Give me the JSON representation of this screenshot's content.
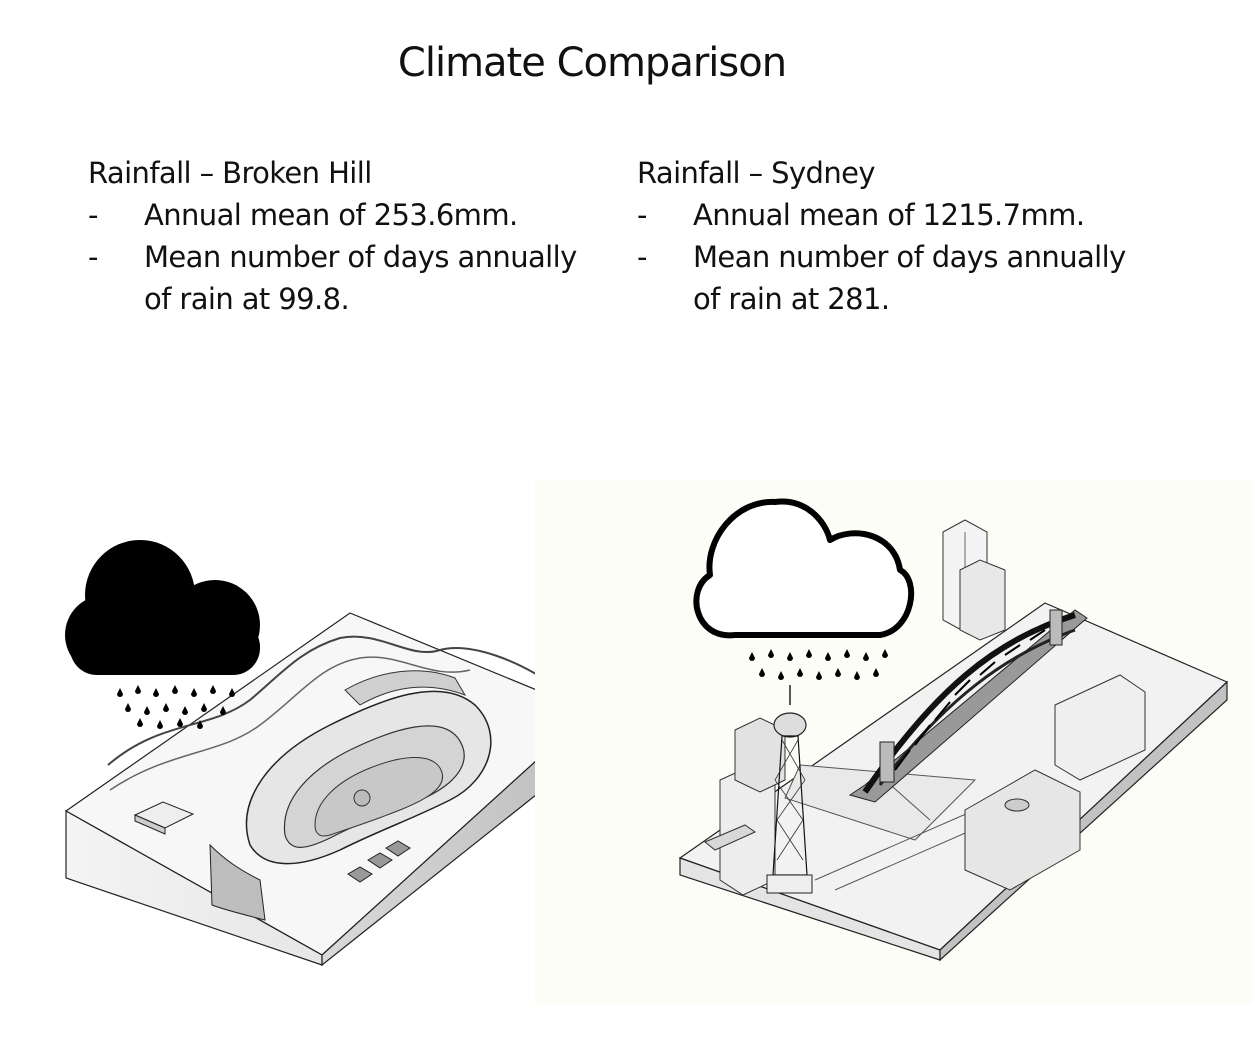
{
  "title": "Climate Comparison",
  "left": {
    "heading": "Rainfall – Broken Hill",
    "items": [
      {
        "bullet": "-",
        "text": "Annual mean of 253.6mm."
      },
      {
        "bullet": "-",
        "text": "Mean number of days annually of rain at 99.8."
      }
    ],
    "cloud_color": "#000000"
  },
  "right": {
    "heading": "Rainfall – Sydney",
    "items": [
      {
        "bullet": "-",
        "text": "Annual mean of 1215.7mm."
      },
      {
        "bullet": "-",
        "text": "Mean number of days annually of rain at 281."
      }
    ],
    "cloud_color": "#ffffff"
  }
}
